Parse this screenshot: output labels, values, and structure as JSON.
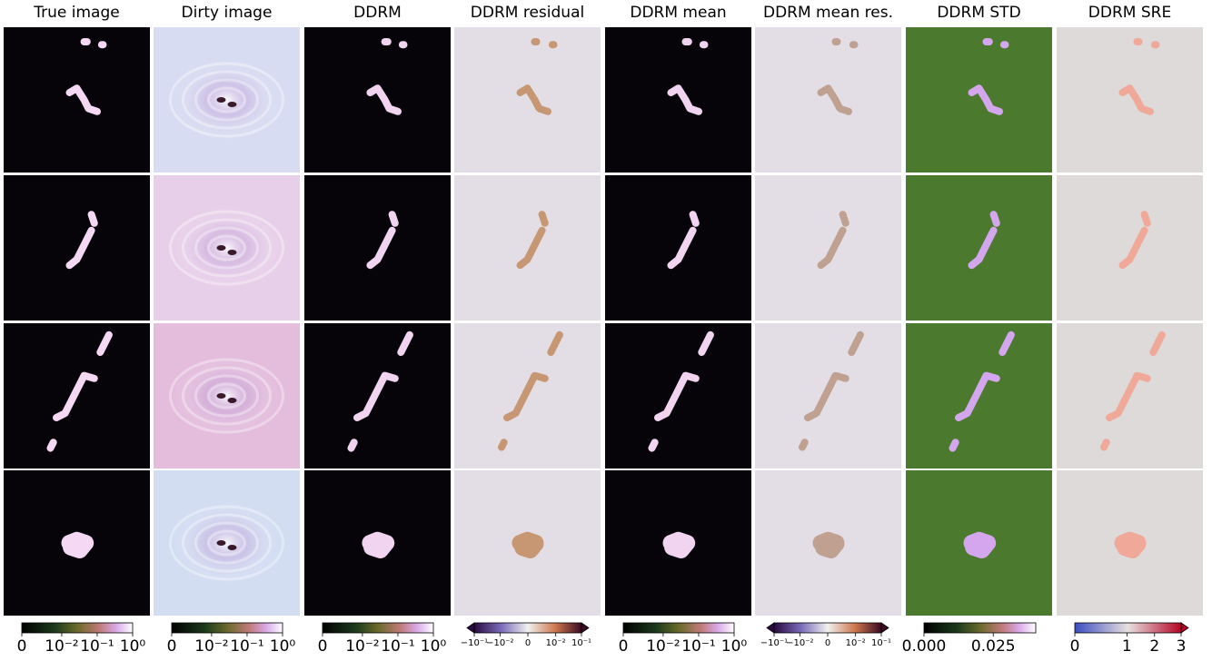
{
  "columns": [
    "True image",
    "Dirty image",
    "DDRM",
    "DDRM residual",
    "DDRM mean",
    "DDRM mean res.",
    "DDRM STD",
    "DDRM SRE"
  ],
  "colorbars": [
    {
      "ticks": [
        "0",
        "10⁻²",
        "10⁻¹",
        "10⁰"
      ]
    },
    {
      "ticks": [
        "0",
        "10⁻²",
        "10⁻¹",
        "10⁰"
      ]
    },
    {
      "ticks": [
        "0",
        "10⁻²",
        "10⁻¹",
        "10⁰"
      ]
    },
    {
      "ticks": [
        "−10⁻¹",
        "−10⁻²",
        "0",
        "10⁻²",
        "10⁻¹"
      ]
    },
    {
      "ticks": [
        "0",
        "10⁻²",
        "10⁻¹",
        "10⁰"
      ]
    },
    {
      "ticks": [
        "−10⁻¹",
        "−10⁻²",
        "0",
        "10⁻²",
        "10⁻¹"
      ]
    },
    {
      "ticks": [
        {
          "value": 0,
          "label": "0.000"
        },
        {
          "value": 0.025,
          "label": "0.025"
        }
      ]
    },
    {
      "ticks": [
        0,
        1,
        2,
        3
      ]
    }
  ]
}
